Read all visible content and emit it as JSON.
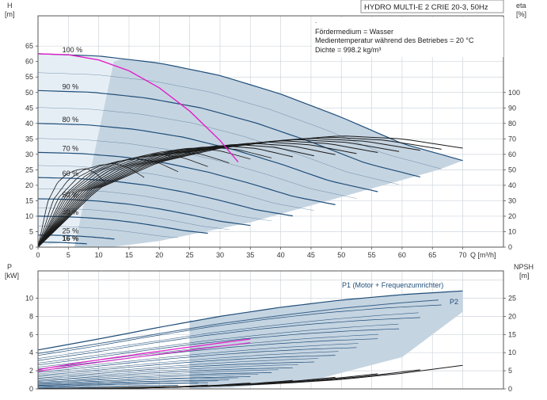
{
  "colors": {
    "frame": "#555555",
    "grid": "#cfd6dc",
    "pump_curve": "#1f4e79",
    "efficiency_curve": "#1a1a1a",
    "system_curve": "#e020c8",
    "area_fill": "#c5d4e1",
    "area_fill_light": "#e6eef5"
  },
  "chart_data": [
    {
      "type": "line",
      "id": "qh",
      "title": "HYDRO MULTI-E 2 CRIE 20-3, 50Hz",
      "annotations": [
        "Fördermedium = Wasser",
        "Medientemperatur während des Betriebes = 20 °C",
        "Dichte = 998.2 kg/m³"
      ],
      "xlabel": "Q [m³/h]",
      "xlim": [
        0,
        72
      ],
      "xticks": [
        "0",
        "5",
        "10",
        "15",
        "20",
        "25",
        "30",
        "35",
        "40",
        "45",
        "50",
        "55",
        "60",
        "65",
        "70"
      ],
      "ylabel_left": "H",
      "ylabel_left_unit": "[m]",
      "ylim": [
        0,
        70
      ],
      "yticks_left": [
        "0",
        "5",
        "10",
        "15",
        "20",
        "25",
        "30",
        "35",
        "40",
        "45",
        "50",
        "55",
        "60",
        "65"
      ],
      "ylabel_right": "eta",
      "ylabel_right_unit": "[%]",
      "ylim_right": [
        0,
        140
      ],
      "yticks_right": [
        "0",
        "10",
        "20",
        "30",
        "40",
        "50",
        "60",
        "70",
        "80",
        "90",
        "100"
      ],
      "grid": true,
      "speed_labels": [
        "100 %",
        "90 %",
        "80 %",
        "70 %",
        "60 %",
        "50 %",
        "40 %",
        "25 %",
        "16 %"
      ],
      "speed_fractions": [
        1.0,
        0.9,
        0.8,
        0.7,
        0.6,
        0.5,
        0.4,
        0.25,
        0.16
      ],
      "base_curve_q": [
        0,
        10,
        20,
        30,
        40,
        50,
        60,
        70
      ],
      "base_curve_h": [
        62.5,
        61.8,
        59.5,
        55.5,
        49.5,
        42.0,
        33.5,
        28.0
      ],
      "system_curve": {
        "x": [
          0,
          5,
          10,
          15,
          20,
          25,
          30,
          33
        ],
        "y": [
          62.5,
          62.2,
          60.5,
          57.0,
          51.5,
          44.0,
          34.5,
          27.5
        ]
      },
      "efficiency_base": {
        "q": [
          0,
          10,
          20,
          30,
          40,
          50,
          60,
          70
        ],
        "eta": [
          0,
          38,
          55,
          64,
          69,
          72,
          70,
          64
        ]
      }
    },
    {
      "type": "line",
      "id": "power",
      "xlim": [
        0,
        72
      ],
      "ylabel_left": "P",
      "ylabel_left_unit": "[kW]",
      "ylim": [
        0,
        12
      ],
      "yticks_left": [
        "0",
        "2",
        "4",
        "6",
        "8",
        "10"
      ],
      "ylabel_right": "NPSH",
      "ylabel_right_unit": "[m]",
      "ylim_right": [
        0,
        30
      ],
      "yticks_right": [
        "0",
        "5",
        "10",
        "15",
        "20",
        "25"
      ],
      "grid": true,
      "series_labels": [
        "P1 (Motor + Frequenzumrichter)",
        "P2"
      ],
      "p1_100_q": [
        0,
        10,
        20,
        30,
        40,
        50,
        60,
        70
      ],
      "p1_100_p": [
        4.3,
        5.5,
        6.8,
        8.0,
        9.0,
        9.8,
        10.4,
        10.8
      ],
      "p2_100_q": [
        0,
        10,
        20,
        30,
        40,
        50,
        60,
        66
      ],
      "p2_100_p": [
        3.9,
        5.0,
        6.1,
        7.2,
        8.1,
        8.9,
        9.5,
        9.8
      ],
      "npsh_q": [
        30,
        40,
        50,
        60,
        70
      ],
      "npsh_m": [
        0.8,
        1.5,
        2.6,
        4.3,
        6.5
      ]
    }
  ]
}
